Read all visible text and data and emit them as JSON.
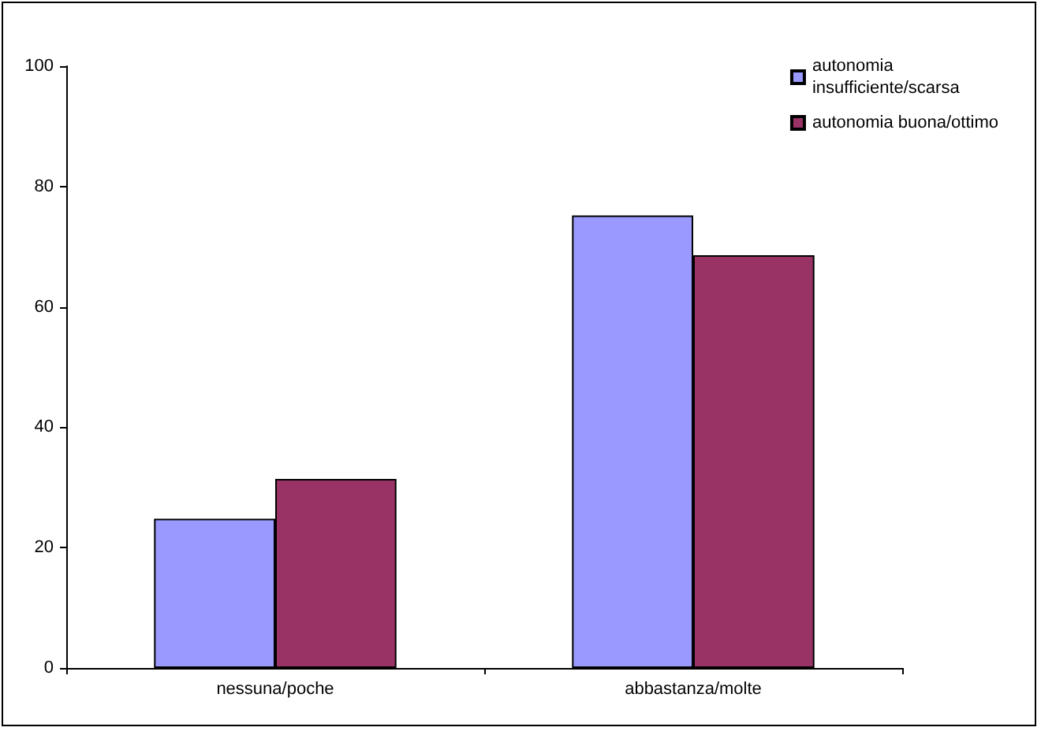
{
  "chart_data": {
    "type": "bar",
    "categories": [
      "nessuna/poche",
      "abbastanza/molte"
    ],
    "series": [
      {
        "name": "autonomia\ninsufficiente/scarsa",
        "color": "#9999ff",
        "values": [
          24.8,
          75.2
        ]
      },
      {
        "name": "autonomia buona/ottimo",
        "color": "#993366",
        "values": [
          31.4,
          68.6
        ]
      }
    ],
    "ylim": [
      0,
      100
    ],
    "yticks": [
      0,
      20,
      40,
      60,
      80,
      100
    ],
    "grid": false,
    "legend": "top right"
  }
}
